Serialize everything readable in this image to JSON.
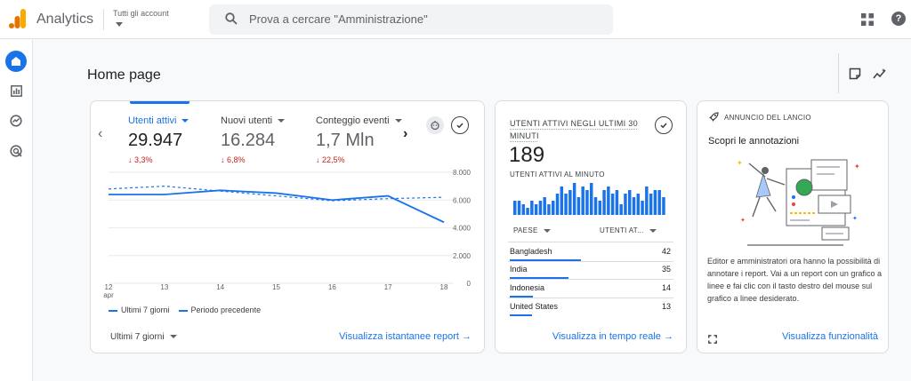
{
  "header": {
    "app_title": "Analytics",
    "account_label": "Tutti gli account",
    "search_placeholder": "Prova a cercare \"Amministrazione\"",
    "help_label": "?"
  },
  "sidenav": {
    "items": [
      {
        "name": "home",
        "icon": "home-icon",
        "active": true
      },
      {
        "name": "reports",
        "icon": "bar-chart-icon",
        "active": false
      },
      {
        "name": "explore",
        "icon": "explore-icon",
        "active": false
      },
      {
        "name": "advertising",
        "icon": "target-icon",
        "active": false
      }
    ]
  },
  "page": {
    "title": "Home page"
  },
  "overview_card": {
    "metrics": [
      {
        "label": "Utenti attivi",
        "value": "29.947",
        "change": "↓ 3,3%",
        "active": true
      },
      {
        "label": "Nuovi utenti",
        "value": "16.284",
        "change": "↓ 6,8%",
        "active": false
      },
      {
        "label": "Conteggio eventi",
        "value": "1,7 Mln",
        "change": "↓ 22,5%",
        "active": false
      }
    ],
    "legend": {
      "current": "Ultimi 7 giorni",
      "previous": "Periodo precedente"
    },
    "date_range": "Ultimi 7 giorni",
    "link": "Visualizza istantanee report"
  },
  "chart_data": {
    "type": "line",
    "x": [
      "12 apr",
      "13",
      "14",
      "15",
      "16",
      "17",
      "18"
    ],
    "x_tick_labels": [
      "12",
      "13",
      "14",
      "15",
      "16",
      "17",
      "18"
    ],
    "x_sublabel": "apr",
    "y_ticks": [
      "8.000",
      "6.000",
      "4.000",
      "2.000",
      "0"
    ],
    "ylim": [
      0,
      8000
    ],
    "grid": true,
    "legend_position": "bottom-left",
    "series": [
      {
        "name": "Ultimi 7 giorni",
        "style": "solid",
        "color": "#1a73e8",
        "values": [
          6400,
          6400,
          6700,
          6500,
          6000,
          6300,
          4400
        ]
      },
      {
        "name": "Periodo precedente",
        "style": "dashed",
        "color": "#1a73e8",
        "values": [
          6800,
          7000,
          6650,
          6300,
          5950,
          6100,
          6200
        ]
      }
    ]
  },
  "realtime_card": {
    "title": "UTENTI ATTIVI NEGLI ULTIMI 30 MINUTI",
    "value": "189",
    "per_minute_label": "UTENTI ATTIVI AL MINUTO",
    "per_minute_values": [
      4,
      4,
      3,
      2,
      4,
      3,
      4,
      5,
      3,
      4,
      6,
      8,
      6,
      7,
      9,
      5,
      8,
      7,
      9,
      5,
      4,
      7,
      8,
      6,
      7,
      3,
      6,
      7,
      5,
      6,
      4,
      8,
      6,
      7,
      7,
      5
    ],
    "table": {
      "col1": "PAESE",
      "col2": "UTENTI AT...",
      "rows": [
        {
          "country": "Bangladesh",
          "users": "42",
          "share": 1.0
        },
        {
          "country": "India",
          "users": "35",
          "share": 0.83
        },
        {
          "country": "Indonesia",
          "users": "14",
          "share": 0.33
        },
        {
          "country": "United States",
          "users": "13",
          "share": 0.31
        }
      ]
    },
    "link": "Visualizza in tempo reale"
  },
  "news_card": {
    "header": "ANNUNCIO DEL LANCIO",
    "title": "Scopri le annotazioni",
    "body": "Editor e amministratori ora hanno la possibilità di annotare i report. Vai a un report con un grafico a linee e fai clic con il tasto destro del mouse sul grafico a linee desiderato.",
    "link": "Visualizza funzionalità"
  },
  "colors": {
    "accent": "#1a73e8",
    "negative": "#c5221f",
    "border": "#dadce0"
  }
}
